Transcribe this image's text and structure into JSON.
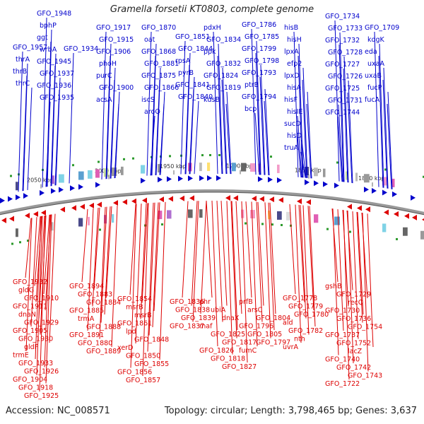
{
  "title": "Gramella forsetii KT0803, complete genome",
  "footer": {
    "accession": "Accession: NC_008571",
    "summary": "Topology: circular; Length: 3,798,465 bp; Genes: 3,637"
  },
  "colors": {
    "forward": "#0000cc",
    "reverse": "#dd0000",
    "backbone": "#999999"
  },
  "ticks": [
    "2050 kbp",
    "2000 kbp",
    "1950 kbp",
    "1900 kbp",
    "1850 kbp",
    "1800 kbp"
  ],
  "forward_genes": [
    "GFO_1957",
    "thrA",
    "thrB",
    "thrC",
    "GFO_1948",
    "bphP",
    "ggt",
    "wrbA",
    "GFO_1945",
    "GFO_1937",
    "GFO_1936",
    "GFO_1935",
    "GFO_1934",
    "GFO_1917",
    "GFO_1915",
    "GFO_1906",
    "phoH",
    "purC",
    "GFO_1900",
    "acsA",
    "GFO_1870",
    "oat",
    "GFO_1868",
    "GFO_1881",
    "GFO_1875",
    "GFO_1866",
    "iscS",
    "aroQ",
    "GFO_1851",
    "GFO_1844",
    "rpsA",
    "pyrB",
    "GFO_1841",
    "GFO_1840",
    "pdxH",
    "GFO_1834",
    "ppk",
    "GFO_1832",
    "GFO_1824",
    "GFO_1819",
    "kdsB",
    "GFO_1786",
    "GFO_1785",
    "GFO_1799",
    "GFO_1798",
    "GFO_1793",
    "ptrB",
    "GFO_1794",
    "bcp",
    "hisB",
    "hisH",
    "lpxA",
    "efp2",
    "lpxD",
    "hisA",
    "hisF",
    "hisIE",
    "sucD",
    "hisD",
    "truA",
    "GFO_1734",
    "GFO_1733",
    "GFO_1732",
    "GFO_1728",
    "GFO_1727",
    "GFO_1726",
    "GFO_1725",
    "GFO_1731",
    "GFO_1744",
    "GFO_1709",
    "kdgK",
    "eda",
    "uxaA",
    "uxaB",
    "fucP",
    "fucA"
  ],
  "reverse_genes": [
    "GFO_1932",
    "gldG",
    "GFO_1910",
    "GFO_1911",
    "dnaN",
    "GFO_1929",
    "GFO_1905",
    "GFO_1930",
    "gldF",
    "trmE",
    "GFO_1933",
    "GFO_1926",
    "GFO_1904",
    "GFO_1918",
    "GFO_1925",
    "GFO_1894",
    "GFO_1883",
    "GFO_1884",
    "GFO_1885",
    "trmA",
    "GFO_1888",
    "GFO_1891",
    "GFO_1880",
    "GFO_1889",
    "GFO_1854",
    "msrB",
    "msrB",
    "GFO_1861",
    "lpd",
    "GFO_1848",
    "xerD",
    "GFO_1850",
    "GFO_1855",
    "GFO_1856",
    "GFO_1857",
    "GFO_1836",
    "GFO_1838",
    "GFO_1839",
    "GFO_1837",
    "phr",
    "ubiA",
    "dnaX",
    "maf",
    "GFO_1825",
    "GFO_1817",
    "GFO_1826",
    "GFO_1818",
    "GFO_1827",
    "prfB",
    "arsC",
    "GFO_1804",
    "GFO_1796",
    "GFO_1805",
    "GFO_1797",
    "fumC",
    "GFO_1778",
    "GFO_1779",
    "GFO_1780",
    "ald",
    "GFO_1782",
    "nth",
    "uvrA",
    "gshB",
    "GFO_1729",
    "recQ",
    "GFO_1730",
    "GFO_1736",
    "GFO_1754",
    "GFO_1737",
    "GFO_1752",
    "lacZ",
    "GFO_1740",
    "GFO_1742",
    "GFO_1743",
    "GFO_1722"
  ]
}
